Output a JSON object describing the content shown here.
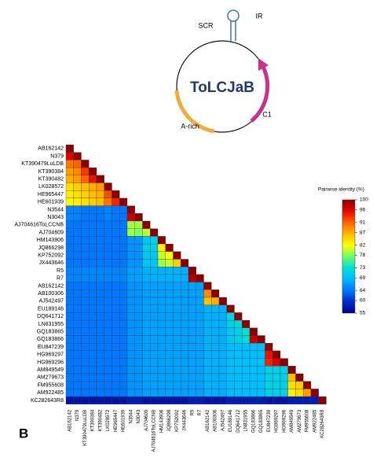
{
  "diagram": {
    "title": "ToLCJaB",
    "labels": [
      "SCR",
      "IR",
      "A-rich",
      "C1"
    ]
  },
  "chart_data": {
    "type": "heatmap",
    "panel_label": "B",
    "row_labels": [
      "AB162142",
      "N379",
      "KT390479LuLDB",
      "KT390384",
      "KT390482",
      "LK028572",
      "HE965447",
      "HE601939",
      "N3544",
      "N3043",
      "AJ704616ToLCCNB",
      "AJ704609",
      "HM143906",
      "JQ866298",
      "KP752092",
      "JX443646",
      "R5",
      "R7",
      "AB162142",
      "AB100306",
      "AJ542497",
      "EU189146",
      "DQ641712",
      "LN831955",
      "GQ183865",
      "GQ183866",
      "EU847239",
      "HG969297",
      "HG969296",
      "AM849549",
      "AM279673",
      "FM955608",
      "AM922485",
      "KC282643R8"
    ],
    "column_labels": [
      "AB162142",
      "N379",
      "KT390479LuLDB",
      "KT390384",
      "KT390482",
      "LK028572",
      "HE965447",
      "HE601939",
      "N3544",
      "N3043",
      "AJ704609",
      "AJ704616ToLCCNB",
      "HM143906",
      "JQ866298",
      "KP752092",
      "JX443646",
      "R5",
      "R7",
      "AB162142",
      "AB100306",
      "AJ542497",
      "EU189146",
      "DQ641712",
      "LN831955",
      "GQ183866",
      "GQ183865",
      "EU847239",
      "HG969297",
      "HG969296",
      "AM849549",
      "AM279673",
      "FM955608",
      "AM922485",
      "KC282643R8"
    ],
    "matrix": [
      [
        100
      ],
      [
        96,
        100
      ],
      [
        90,
        91,
        100
      ],
      [
        88,
        89,
        93,
        100
      ],
      [
        87,
        88,
        91,
        95,
        100
      ],
      [
        84,
        85,
        86,
        87,
        88,
        100
      ],
      [
        83,
        84,
        85,
        86,
        87,
        92,
        100
      ],
      [
        82,
        83,
        84,
        85,
        86,
        90,
        94,
        100
      ],
      [
        65,
        65,
        64,
        64,
        64,
        65,
        64,
        64,
        100
      ],
      [
        65,
        65,
        64,
        64,
        64,
        65,
        64,
        64,
        97,
        100
      ],
      [
        64,
        64,
        64,
        64,
        64,
        64,
        64,
        64,
        79,
        79,
        100
      ],
      [
        64,
        64,
        64,
        64,
        64,
        64,
        64,
        64,
        79,
        78,
        80,
        100
      ],
      [
        64,
        64,
        64,
        64,
        64,
        64,
        64,
        64,
        66,
        66,
        70,
        71,
        100
      ],
      [
        64,
        64,
        64,
        64,
        64,
        64,
        64,
        64,
        66,
        66,
        71,
        71,
        83,
        100
      ],
      [
        64,
        64,
        64,
        64,
        64,
        64,
        64,
        64,
        66,
        66,
        70,
        70,
        80,
        82,
        100
      ],
      [
        64,
        64,
        64,
        64,
        64,
        64,
        64,
        64,
        66,
        66,
        70,
        70,
        79,
        80,
        85,
        100
      ],
      [
        65,
        65,
        65,
        65,
        65,
        65,
        65,
        65,
        67,
        67,
        68,
        68,
        68,
        68,
        68,
        68,
        100
      ],
      [
        65,
        65,
        65,
        65,
        65,
        65,
        65,
        65,
        67,
        67,
        68,
        68,
        68,
        68,
        68,
        68,
        98,
        100
      ],
      [
        64,
        64,
        64,
        64,
        64,
        64,
        64,
        64,
        66,
        66,
        67,
        67,
        67,
        67,
        67,
        67,
        67,
        67,
        100
      ],
      [
        64,
        64,
        64,
        64,
        64,
        64,
        64,
        64,
        66,
        66,
        67,
        67,
        67,
        67,
        67,
        67,
        67,
        67,
        89,
        100
      ],
      [
        64,
        64,
        64,
        64,
        64,
        64,
        64,
        64,
        66,
        66,
        67,
        67,
        67,
        67,
        67,
        67,
        67,
        67,
        86,
        87,
        100
      ],
      [
        64,
        64,
        64,
        64,
        64,
        64,
        64,
        64,
        66,
        66,
        67,
        67,
        67,
        67,
        67,
        67,
        67,
        67,
        68,
        68,
        68,
        100
      ],
      [
        64,
        64,
        64,
        64,
        64,
        64,
        64,
        64,
        66,
        66,
        67,
        67,
        67,
        67,
        67,
        67,
        67,
        67,
        68,
        68,
        68,
        72,
        100
      ],
      [
        64,
        64,
        64,
        64,
        64,
        64,
        64,
        64,
        66,
        66,
        67,
        67,
        67,
        67,
        67,
        67,
        67,
        67,
        68,
        68,
        68,
        71,
        72,
        100
      ],
      [
        64,
        64,
        64,
        64,
        64,
        64,
        64,
        64,
        66,
        66,
        67,
        67,
        67,
        67,
        67,
        67,
        67,
        67,
        68,
        68,
        68,
        70,
        71,
        73,
        100
      ],
      [
        64,
        64,
        64,
        64,
        64,
        64,
        64,
        64,
        66,
        66,
        67,
        67,
        67,
        67,
        67,
        67,
        67,
        67,
        68,
        68,
        68,
        70,
        71,
        73,
        97,
        100
      ],
      [
        64,
        64,
        64,
        64,
        64,
        64,
        64,
        64,
        66,
        66,
        67,
        67,
        67,
        67,
        67,
        67,
        67,
        67,
        68,
        68,
        68,
        69,
        69,
        69,
        69,
        69,
        100
      ],
      [
        64,
        64,
        64,
        64,
        64,
        64,
        64,
        64,
        66,
        66,
        67,
        67,
        67,
        67,
        67,
        67,
        67,
        67,
        68,
        68,
        68,
        69,
        69,
        69,
        69,
        69,
        95,
        100
      ],
      [
        64,
        64,
        64,
        64,
        64,
        64,
        64,
        64,
        66,
        66,
        67,
        67,
        67,
        67,
        67,
        67,
        67,
        67,
        68,
        68,
        68,
        69,
        69,
        69,
        69,
        69,
        94,
        96,
        100
      ],
      [
        64,
        64,
        64,
        64,
        64,
        64,
        64,
        64,
        66,
        66,
        67,
        67,
        67,
        67,
        67,
        67,
        67,
        67,
        68,
        68,
        68,
        69,
        69,
        69,
        69,
        69,
        71,
        71,
        71,
        100
      ],
      [
        64,
        64,
        64,
        64,
        64,
        64,
        64,
        64,
        66,
        66,
        67,
        67,
        67,
        67,
        67,
        67,
        67,
        67,
        68,
        68,
        68,
        69,
        69,
        69,
        69,
        69,
        71,
        71,
        71,
        86,
        100
      ],
      [
        64,
        64,
        64,
        64,
        64,
        64,
        64,
        64,
        66,
        66,
        67,
        67,
        67,
        67,
        67,
        67,
        67,
        67,
        68,
        68,
        68,
        69,
        69,
        69,
        69,
        69,
        71,
        71,
        71,
        84,
        85,
        100
      ],
      [
        64,
        64,
        64,
        64,
        64,
        64,
        64,
        64,
        66,
        66,
        67,
        67,
        67,
        67,
        67,
        67,
        67,
        67,
        68,
        68,
        68,
        69,
        69,
        69,
        69,
        69,
        71,
        71,
        71,
        83,
        84,
        88,
        100
      ],
      [
        57,
        57,
        57,
        57,
        57,
        57,
        57,
        57,
        58,
        58,
        57,
        57,
        57,
        57,
        57,
        57,
        58,
        58,
        57,
        57,
        57,
        58,
        58,
        58,
        58,
        58,
        57,
        57,
        57,
        58,
        58,
        58,
        58,
        100
      ]
    ],
    "colorbar": {
      "title": "Pairwise identity (%)",
      "lim": [
        55,
        100
      ],
      "ticks": [
        55,
        60,
        64,
        69,
        73,
        78,
        82,
        87,
        91,
        96,
        100
      ],
      "colors": [
        "#00008b",
        "#0033cc",
        "#0077ff",
        "#00bfff",
        "#00e0d0",
        "#7fff5a",
        "#ffff00",
        "#ffb000",
        "#ff6000",
        "#e00000",
        "#8b0000"
      ]
    }
  }
}
